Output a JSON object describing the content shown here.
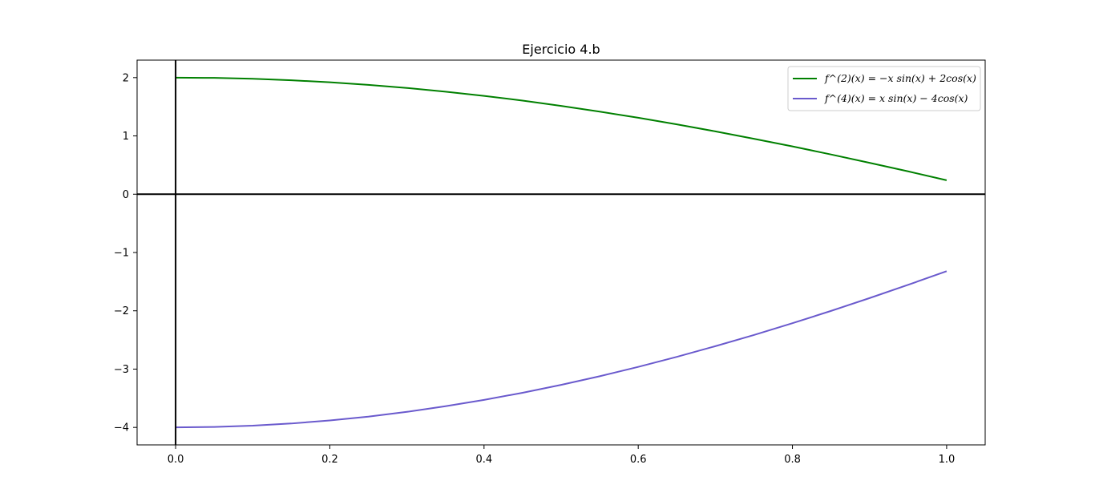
{
  "chart_data": {
    "type": "line",
    "title": "Ejercicio 4.b",
    "xlabel": "",
    "ylabel": "",
    "xlim": [
      -0.05,
      1.05
    ],
    "ylim": [
      -4.3,
      2.3
    ],
    "xticks": [
      0.0,
      0.2,
      0.4,
      0.6,
      0.8,
      1.0
    ],
    "xtick_labels": [
      "0.0",
      "0.2",
      "0.4",
      "0.6",
      "0.8",
      "1.0"
    ],
    "yticks": [
      2,
      1,
      0,
      -1,
      -2,
      -3,
      -4
    ],
    "ytick_labels": [
      "2",
      "1",
      "0",
      "−1",
      "−2",
      "−3",
      "−4"
    ],
    "grid": false,
    "legend_position": "top-right",
    "reference_lines": {
      "horizontal": 0,
      "vertical": 0,
      "color": "#000000"
    },
    "x": [
      0.0,
      0.05,
      0.1,
      0.15,
      0.2,
      0.25,
      0.3,
      0.35,
      0.4,
      0.45,
      0.5,
      0.55,
      0.6,
      0.65,
      0.7,
      0.75,
      0.8,
      0.85,
      0.9,
      0.95,
      1.0
    ],
    "series": [
      {
        "name": "f^(2)(x) = −x sin(x) + 2cos(x)",
        "color": "#008000",
        "values": [
          2.0,
          1.995,
          1.98,
          1.955,
          1.92,
          1.876,
          1.822,
          1.759,
          1.687,
          1.606,
          1.515,
          1.416,
          1.312,
          1.198,
          1.078,
          0.951,
          0.82,
          0.682,
          0.538,
          0.392,
          0.239
        ]
      },
      {
        "name": "f^(4)(x) = x sin(x) − 4cos(x)",
        "color": "#6a5acd",
        "values": [
          -4.0,
          -3.992,
          -3.97,
          -3.933,
          -3.881,
          -3.815,
          -3.733,
          -3.637,
          -3.528,
          -3.406,
          -3.271,
          -3.123,
          -2.962,
          -2.79,
          -2.607,
          -2.415,
          -2.213,
          -2.002,
          -1.782,
          -1.555,
          -1.32
        ]
      }
    ]
  }
}
